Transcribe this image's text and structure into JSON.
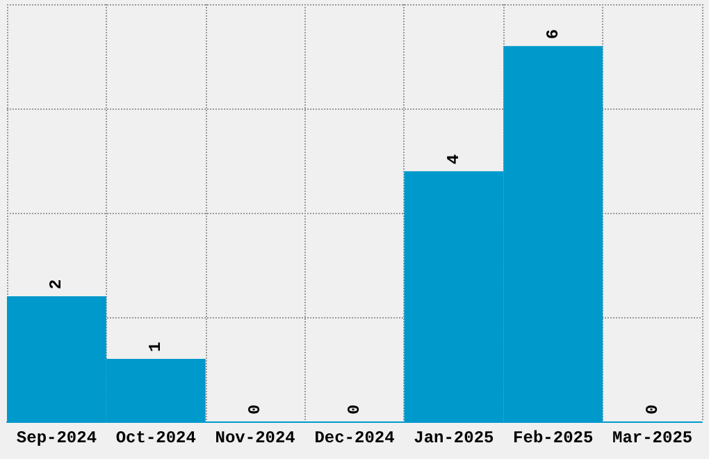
{
  "chart_data": {
    "type": "bar",
    "categories": [
      "Sep-2024",
      "Oct-2024",
      "Nov-2024",
      "Dec-2024",
      "Jan-2025",
      "Feb-2025",
      "Mar-2025"
    ],
    "values": [
      2,
      1,
      0,
      0,
      4,
      6,
      0
    ],
    "color": "#0099cc",
    "ylim": [
      0,
      6.67
    ],
    "yticks": [
      {
        "value": 0,
        "label": null
      },
      {
        "value": 1.67,
        "label": null
      },
      {
        "value": 3.33,
        "label": null
      },
      {
        "value": 5,
        "label": null
      },
      {
        "value": 6.67,
        "label": null
      }
    ],
    "grid": true,
    "tick_labels": "x",
    "data_labels": true
  }
}
